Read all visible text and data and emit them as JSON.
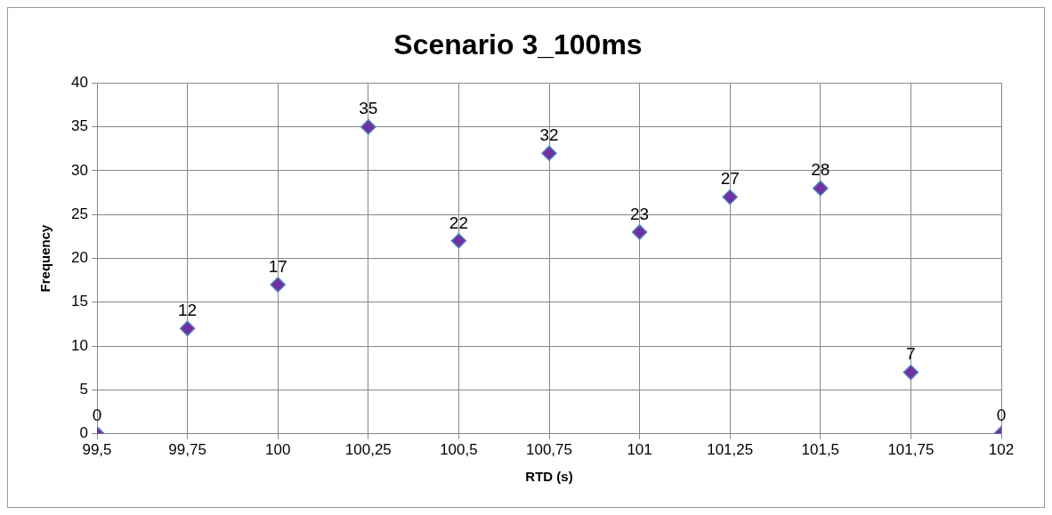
{
  "chart_data": {
    "type": "scatter",
    "title": "Scenario 3_100ms",
    "xlabel": "RTD (s)",
    "ylabel": "Frequency",
    "x": [
      99.5,
      99.75,
      100,
      100.25,
      100.5,
      100.75,
      101,
      101.25,
      101.5,
      101.75,
      102
    ],
    "series": [
      {
        "color": "#7030a0",
        "values": [
          0,
          12,
          17,
          35,
          22,
          32,
          23,
          27,
          28,
          7,
          0
        ]
      }
    ],
    "xlim": [
      99.5,
      102
    ],
    "xticks": [
      {
        "value": 99.5,
        "label": "99,5"
      },
      {
        "value": 99.75,
        "label": "99,75"
      },
      {
        "value": 100,
        "label": "100"
      },
      {
        "value": 100.25,
        "label": "100,25"
      },
      {
        "value": 100.5,
        "label": "100,5"
      },
      {
        "value": 100.75,
        "label": "100,75"
      },
      {
        "value": 101,
        "label": "101"
      },
      {
        "value": 101.25,
        "label": "101,25"
      },
      {
        "value": 101.5,
        "label": "101,5"
      },
      {
        "value": 101.75,
        "label": "101,75"
      },
      {
        "value": 102,
        "label": "102"
      }
    ],
    "ylim": [
      0,
      40
    ],
    "yticks": [
      0,
      5,
      10,
      15,
      20,
      25,
      30,
      35,
      40
    ],
    "grid": true,
    "marker": "diamond",
    "data_labels": true,
    "legend": false
  }
}
